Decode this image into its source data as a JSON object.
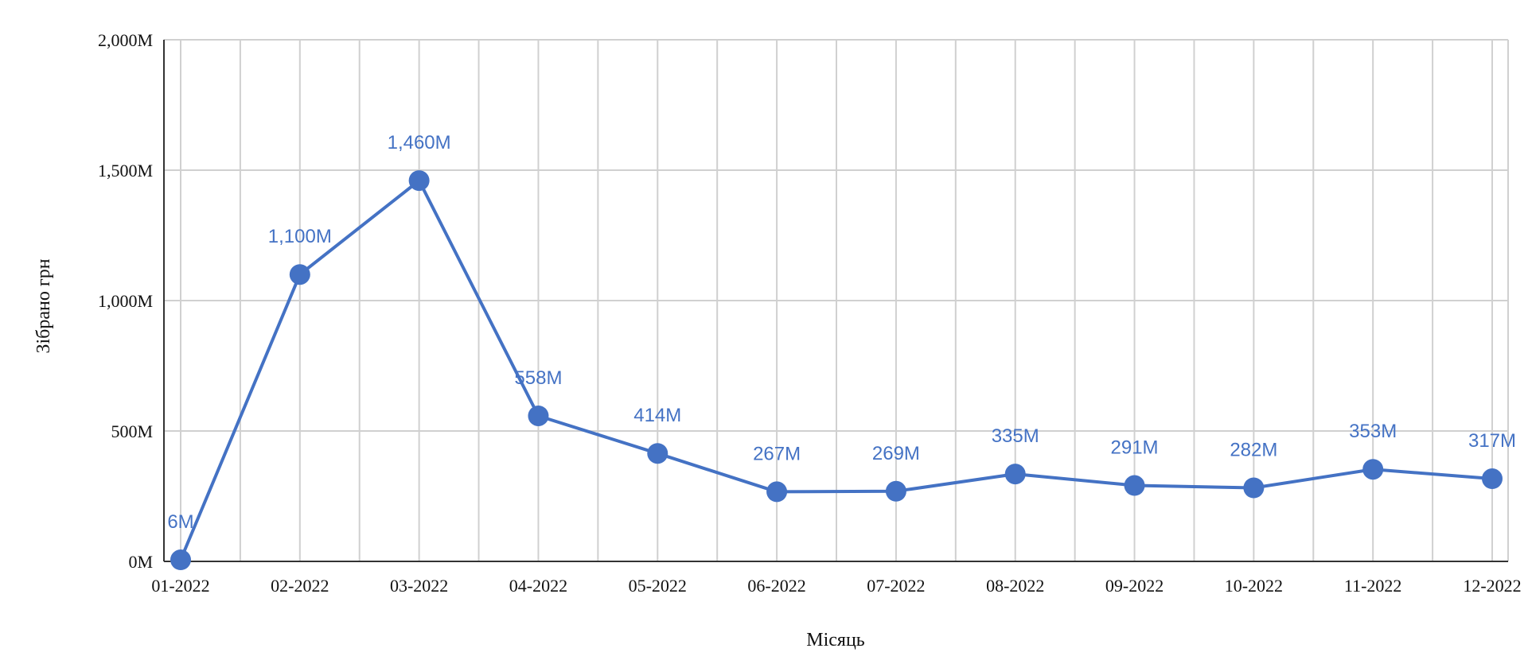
{
  "chart_data": {
    "type": "line",
    "title": "",
    "xlabel": "Місяць",
    "ylabel": "Зібрано грн",
    "categories": [
      "01-2022",
      "02-2022",
      "03-2022",
      "04-2022",
      "05-2022",
      "06-2022",
      "07-2022",
      "08-2022",
      "09-2022",
      "10-2022",
      "11-2022",
      "12-2022"
    ],
    "series": [
      {
        "name": "Зібрано грн",
        "values": [
          6,
          1100,
          1460,
          558,
          414,
          267,
          269,
          335,
          291,
          282,
          353,
          317
        ],
        "labels": [
          "6M",
          "1,100M",
          "1,460M",
          "558M",
          "414M",
          "267M",
          "269M",
          "335M",
          "291M",
          "282M",
          "353M",
          "317M"
        ]
      }
    ],
    "ylim": [
      0,
      2000
    ],
    "yticks": [
      0,
      500,
      1000,
      1500,
      2000
    ],
    "ytick_labels": [
      "0M",
      "500M",
      "1,000M",
      "1,500M",
      "2,000M"
    ],
    "grid": true,
    "legend": "none",
    "colors": {
      "line": "#4472c4",
      "grid": "#d0d0d0",
      "axis": "#333333"
    }
  }
}
